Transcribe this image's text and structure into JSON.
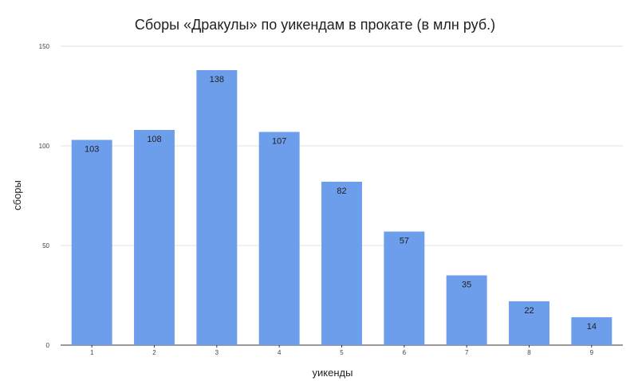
{
  "chart_data": {
    "type": "bar",
    "title": "Сборы «Дракулы» по уикендам в прокате (в млн руб.)",
    "xlabel": "уикенды",
    "ylabel": "сборы",
    "categories": [
      "1",
      "2",
      "3",
      "4",
      "5",
      "6",
      "7",
      "8",
      "9"
    ],
    "values": [
      103,
      108,
      138,
      107,
      82,
      57,
      35,
      22,
      14
    ],
    "ylim": [
      0,
      150
    ],
    "yticks": [
      0,
      50,
      100,
      150
    ],
    "grid": true,
    "legend": "none",
    "bar_color": "#6d9eeb"
  }
}
